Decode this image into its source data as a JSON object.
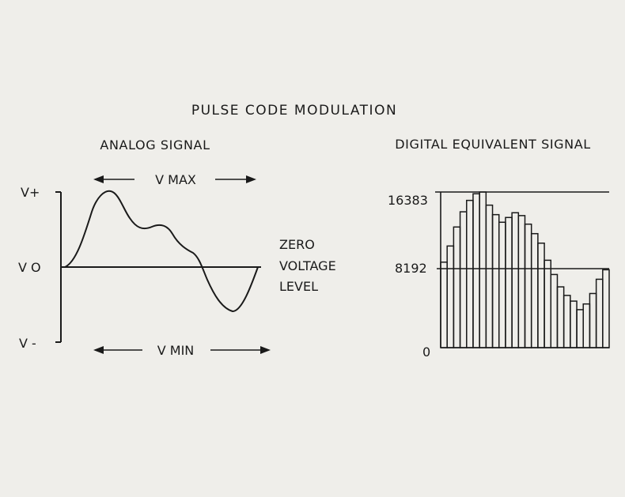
{
  "figure": {
    "title": "PULSE CODE MODULATION",
    "analog": {
      "heading": "ANALOG SIGNAL",
      "vmax_label": "V MAX",
      "vmin_label": "V MIN",
      "vplus_label": "V+",
      "vzero_label": "V O",
      "vminus_label": "V -"
    },
    "zero_level": {
      "line1": "ZERO",
      "line2": "VOLTAGE",
      "line3": "LEVEL"
    },
    "digital": {
      "heading": "DIGITAL EQUIVALENT SIGNAL",
      "tick_max": "16383",
      "tick_mid": "8192",
      "tick_zero": "0"
    }
  },
  "chart_data": {
    "type": "bar",
    "x": [
      1,
      2,
      3,
      4,
      5,
      6,
      7,
      8,
      9,
      10,
      11,
      12,
      13,
      14,
      15,
      16,
      17,
      18,
      19,
      20,
      21,
      22,
      23,
      24,
      25,
      26
    ],
    "values": [
      9000,
      10700,
      12700,
      14300,
      15500,
      16200,
      16383,
      15000,
      14000,
      13200,
      13700,
      14200,
      13900,
      13000,
      12000,
      11000,
      9200,
      7700,
      6400,
      5500,
      4900,
      4000,
      4600,
      5700,
      7200,
      8200
    ],
    "ylim": [
      0,
      16383
    ],
    "yticks": [
      "0",
      "8192",
      "16383"
    ]
  }
}
